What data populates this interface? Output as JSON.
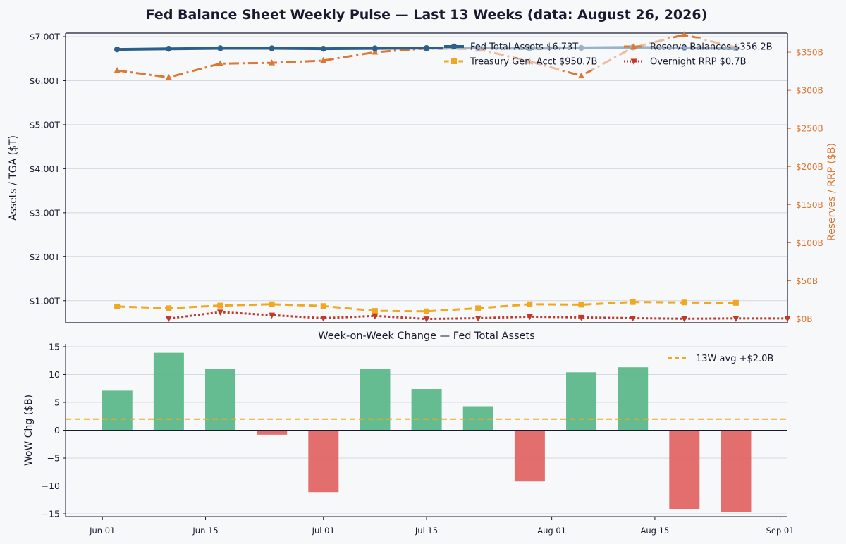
{
  "title": "Fed Balance Sheet Weekly Pulse — Last 13 Weeks  (data: August 26, 2026)",
  "colors": {
    "background": "#f6f8fa",
    "assets": "#2d5f8b",
    "reserves": "#dd7733",
    "tga": "#f0a820",
    "rrp": "#c0392b",
    "bar_positive": "#5cb88a",
    "bar_negative": "#e06666",
    "avg_line": "#f0a820",
    "grid": "#d4d8e0"
  },
  "chart_data": [
    {
      "type": "line",
      "x_dates": [
        "2026-06-03",
        "2026-06-10",
        "2026-06-17",
        "2026-06-24",
        "2026-07-01",
        "2026-07-08",
        "2026-07-15",
        "2026-07-22",
        "2026-07-29",
        "2026-08-05",
        "2026-08-12",
        "2026-08-19",
        "2026-08-26"
      ],
      "xlim": [
        "2026-05-27",
        "2026-09-02"
      ],
      "xticks": [
        "Jun 01",
        "Jun 15",
        "Jul 01",
        "Jul 15",
        "Aug 01",
        "Aug 15",
        "Sep 01"
      ],
      "ylabel_left": "Assets / TGA ($T)",
      "ylabel_right": "Reserves / RRP ($B)",
      "ylim_left": [
        0.5,
        7.08
      ],
      "ylim_right": [
        -5,
        375
      ],
      "yticks_left": [
        "$1.00T",
        "$2.00T",
        "$3.00T",
        "$4.00T",
        "$5.00T",
        "$6.00T",
        "$7.00T"
      ],
      "yticks_right": [
        "$0B",
        "$50B",
        "$100B",
        "$150B",
        "$200B",
        "$250B",
        "$300B",
        "$350B"
      ],
      "grid": true,
      "legend_position": "top-right",
      "series": [
        {
          "name": "Fed Total Assets",
          "legend_label": "Fed Total Assets  $6.73T",
          "axis": "left",
          "dates": [
            "2026-06-03",
            "2026-06-10",
            "2026-06-17",
            "2026-06-24",
            "2026-07-01",
            "2026-07-08",
            "2026-07-15",
            "2026-07-22",
            "2026-07-29",
            "2026-08-05",
            "2026-08-12",
            "2026-08-19",
            "2026-08-26"
          ],
          "values": [
            6.71,
            6.724,
            6.736,
            6.735,
            6.725,
            6.734,
            6.741,
            6.745,
            6.736,
            6.745,
            6.756,
            6.744,
            6.73
          ]
        },
        {
          "name": "Reserve Balances",
          "legend_label": "Reserve Balances  $356.2B",
          "axis": "right",
          "dates": [
            "2026-06-03",
            "2026-06-10",
            "2026-06-17",
            "2026-06-24",
            "2026-07-01",
            "2026-07-08",
            "2026-07-15",
            "2026-07-22",
            "2026-07-29",
            "2026-08-05",
            "2026-08-12",
            "2026-08-19",
            "2026-08-26"
          ],
          "values": [
            326,
            317,
            335,
            336,
            339,
            350,
            355,
            354,
            338,
            319,
            356,
            373,
            356.2
          ]
        },
        {
          "name": "Treasury Gen. Acct",
          "legend_label": "Treasury Gen. Acct  $950.7B",
          "axis": "left",
          "dates": [
            "2026-06-03",
            "2026-06-10",
            "2026-06-17",
            "2026-06-24",
            "2026-07-01",
            "2026-07-08",
            "2026-07-15",
            "2026-07-22",
            "2026-07-29",
            "2026-08-05",
            "2026-08-12",
            "2026-08-19",
            "2026-08-26"
          ],
          "values": [
            0.87,
            0.83,
            0.89,
            0.92,
            0.88,
            0.77,
            0.76,
            0.83,
            0.92,
            0.91,
            0.97,
            0.96,
            0.951
          ]
        },
        {
          "name": "Overnight RRP",
          "legend_label": "Overnight RRP  $0.7B",
          "axis": "right",
          "dates": [
            "2026-06-10",
            "2026-06-17",
            "2026-06-24",
            "2026-07-01",
            "2026-07-08",
            "2026-07-15",
            "2026-07-22",
            "2026-07-29",
            "2026-08-05",
            "2026-08-12",
            "2026-08-19",
            "2026-08-26",
            "2026-09-02"
          ],
          "values": [
            0.5,
            9,
            5,
            1,
            4,
            0,
            1,
            3,
            2,
            1,
            0.3,
            0.7,
            0.7
          ]
        }
      ]
    },
    {
      "type": "bar",
      "title": "Week-on-Week Change — Fed Total Assets",
      "ylabel": "WoW Chg ($B)",
      "ylim": [
        -15.5,
        15.5
      ],
      "yticks": [
        "−15",
        "−10",
        "−5",
        "0",
        "5",
        "10",
        "15"
      ],
      "dates": [
        "2026-06-01",
        "2026-06-08",
        "2026-06-15",
        "2026-06-22",
        "2026-06-29",
        "2026-07-06",
        "2026-07-13",
        "2026-07-20",
        "2026-07-27",
        "2026-08-03",
        "2026-08-10",
        "2026-08-17",
        "2026-08-24"
      ],
      "values": [
        7.1,
        13.9,
        11.0,
        -0.8,
        -11.1,
        11.0,
        7.4,
        4.3,
        -9.2,
        10.4,
        11.3,
        -14.2,
        -14.7
      ],
      "avg": 2.0,
      "avg_label": "13W avg  +$2.0B",
      "legend_position": "top-right"
    }
  ]
}
